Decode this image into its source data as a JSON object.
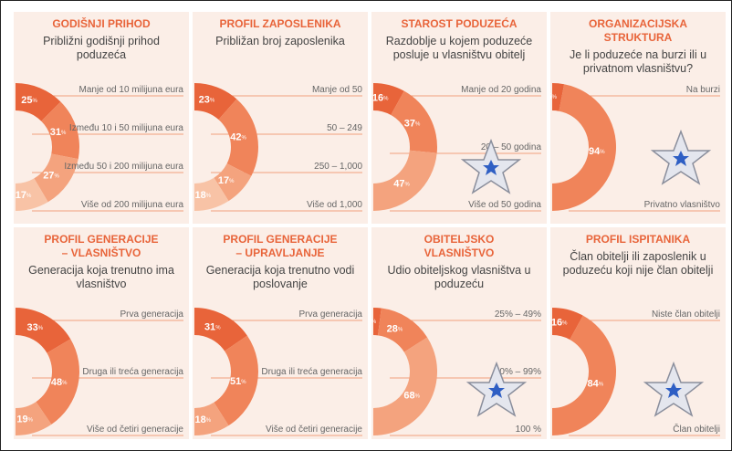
{
  "chart_data": [
    {
      "type": "donut",
      "title": "GODIŠNJI PRIHOD",
      "subtitle": "Približni godišnji prihod poduzeća",
      "unit": "%",
      "categories": [
        "Manje od 10 milijuna eura",
        "Između 10 i 50 milijuna eura",
        "Između 50 i 200 milijuna eura",
        "Više od 200 milijuna eura"
      ],
      "values": [
        25,
        31,
        27,
        17
      ],
      "colors": [
        "#e8643a",
        "#f0845a",
        "#f4a37e",
        "#f8c3a6"
      ]
    },
    {
      "type": "donut",
      "title": "PROFIL ZAPOSLENIKA",
      "subtitle": "Približan broj zaposlenika",
      "unit": "%",
      "categories": [
        "Manje od 50",
        "50 – 249",
        "250 – 1,000",
        "Više od 1,000"
      ],
      "values": [
        23,
        42,
        17,
        18
      ],
      "colors": [
        "#e8643a",
        "#f0845a",
        "#f4a37e",
        "#f8c3a6"
      ]
    },
    {
      "type": "donut",
      "title": "STAROST PODUZEĆA",
      "subtitle": "Razdoblje u kojem poduzeće posluje u vlasništvu obitelj",
      "unit": "%",
      "categories": [
        "Manje od 20 godina",
        "20 – 50 godina",
        "Više od 50 godina"
      ],
      "values": [
        16,
        37,
        47
      ],
      "colors": [
        "#e8643a",
        "#f0845a",
        "#f4a37e"
      ]
    },
    {
      "type": "donut",
      "title": "ORGANIZACIJSKA STRUKTURA",
      "subtitle": "Je li poduzeće na burzi ili u privatnom vlasništvu?",
      "unit": "%",
      "categories": [
        "Na burzi",
        "Privatno vlasništvo"
      ],
      "values": [
        6,
        94
      ],
      "colors": [
        "#e8643a",
        "#f0845a"
      ]
    },
    {
      "type": "donut",
      "title": "PROFIL GENERACIJE – VLASNIŠTVO",
      "subtitle": "Generacija koja trenutno ima vlasništvo",
      "unit": "%",
      "categories": [
        "Prva generacija",
        "Druga ili treća generacija",
        "Više od četiri generacije"
      ],
      "values": [
        33,
        48,
        19
      ],
      "colors": [
        "#e8643a",
        "#f0845a",
        "#f4a37e"
      ]
    },
    {
      "type": "donut",
      "title": "PROFIL GENERACIJE – UPRAVLJANJE",
      "subtitle": "Generacija koja trenutno vodi poslovanje",
      "unit": "%",
      "categories": [
        "Prva generacija",
        "Druga ili treća generacija",
        "Više od četiri generacije"
      ],
      "values": [
        31,
        51,
        18
      ],
      "colors": [
        "#e8643a",
        "#f0845a",
        "#f4a37e"
      ]
    },
    {
      "type": "donut",
      "title": "OBITELJSKO VLASNIŠTVO",
      "subtitle": "Udio obiteljskog vlasništva u poduzeću",
      "unit": "%",
      "categories": [
        "25% – 49%",
        "50% – 99%",
        "100 %"
      ],
      "values": [
        4,
        28,
        68
      ],
      "colors": [
        "#e8643a",
        "#f0845a",
        "#f4a37e"
      ]
    },
    {
      "type": "donut",
      "title": "PROFIL ISPITANIKA",
      "subtitle": "Član obitelji ili zaposlenik u poduzeću koji nije član obitelji",
      "unit": "%",
      "categories": [
        "Niste član obitelji",
        "Član obitelji"
      ],
      "values": [
        16,
        84
      ],
      "colors": [
        "#e8643a",
        "#f0845a"
      ]
    }
  ]
}
